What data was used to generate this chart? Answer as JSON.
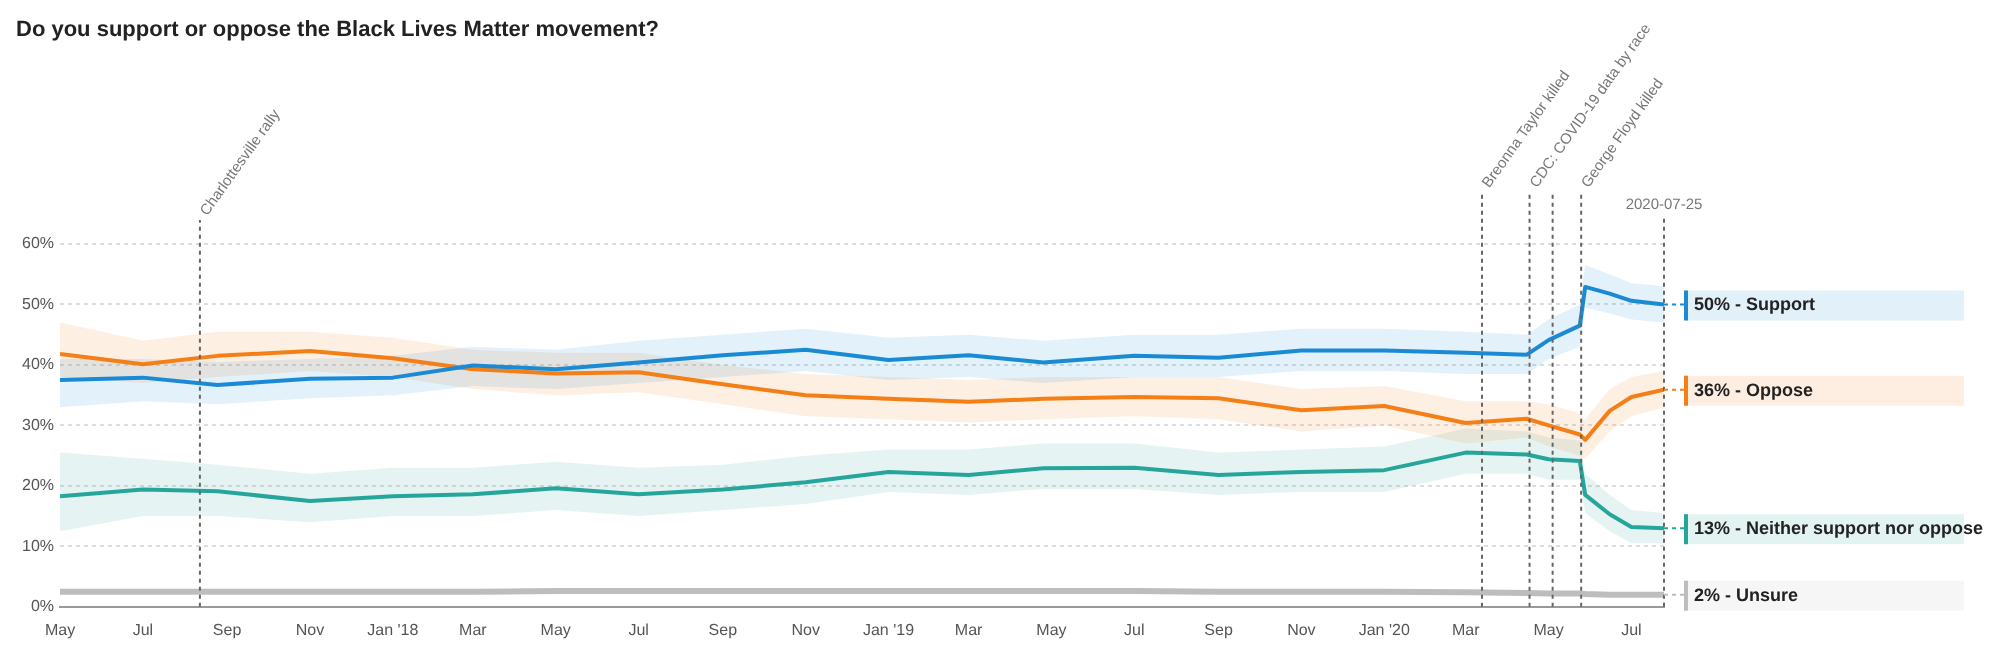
{
  "chart_data": {
    "type": "line",
    "title": "Do you support or oppose the Black Lives Matter movement?",
    "x": [
      "2017-05-01",
      "2017-07-01",
      "2017-08-25",
      "2017-11-01",
      "2018-01-01",
      "2018-03-01",
      "2018-05-01",
      "2018-07-01",
      "2018-09-01",
      "2018-11-01",
      "2019-01-01",
      "2019-03-01",
      "2019-04-25",
      "2019-07-01",
      "2019-09-01",
      "2019-11-01",
      "2020-01-01",
      "2020-03-01",
      "2020-04-15",
      "2020-05-01",
      "2020-05-24",
      "2020-05-28",
      "2020-06-15",
      "2020-07-01",
      "2020-07-25"
    ],
    "series": [
      {
        "name": "50% - Support",
        "color": "#1a8ad4",
        "values": [
          37.5,
          37.9,
          36.7,
          37.7,
          37.9,
          39.9,
          39.3,
          40.4,
          41.6,
          42.5,
          40.8,
          41.6,
          40.4,
          41.5,
          41.2,
          42.4,
          42.4,
          42,
          41.7,
          44.1,
          46.5,
          52.9,
          51.8,
          50.6,
          50
        ],
        "lower": [
          33,
          34,
          33.5,
          34.5,
          35,
          36.5,
          36,
          37,
          38,
          39,
          37.5,
          38,
          37,
          38,
          38,
          39,
          39,
          38.5,
          38.5,
          41,
          43,
          49.5,
          48.5,
          47.5,
          47
        ],
        "upper": [
          41,
          41,
          40.5,
          41,
          41.5,
          43,
          42.5,
          44,
          45,
          46,
          44.5,
          45,
          44,
          45,
          45,
          46,
          46,
          45.5,
          45,
          47.5,
          50,
          56.5,
          55,
          53.5,
          53
        ]
      },
      {
        "name": "36% - Oppose",
        "color": "#f57f17",
        "values": [
          41.8,
          40.1,
          41.5,
          42.3,
          41.1,
          39.3,
          38.6,
          38.8,
          36.8,
          35,
          34.4,
          33.9,
          34.4,
          34.7,
          34.5,
          32.5,
          33.2,
          30.4,
          31.1,
          30,
          28.5,
          27.6,
          32.4,
          34.7,
          35.9
        ],
        "lower": [
          38,
          37,
          38,
          39,
          38,
          36,
          35,
          35.5,
          33.5,
          31.5,
          31,
          30.5,
          31,
          31.5,
          31,
          29,
          30,
          27,
          28,
          26.5,
          25,
          24.5,
          29,
          31.5,
          33
        ],
        "upper": [
          47,
          44,
          45.5,
          45.5,
          44.5,
          42.5,
          42,
          42,
          40,
          38.5,
          38,
          37.5,
          38,
          38,
          38,
          36,
          36.5,
          34,
          34,
          33.5,
          32,
          31,
          36,
          38,
          39
        ]
      },
      {
        "name": "13% - Neither support nor oppose",
        "color": "#26a69a",
        "values": [
          18.3,
          19.4,
          19.1,
          17.5,
          18.3,
          18.6,
          19.6,
          18.6,
          19.4,
          20.6,
          22.3,
          21.8,
          22.9,
          23,
          21.8,
          22.3,
          22.6,
          25.5,
          25.2,
          24.4,
          24.1,
          18.5,
          15.3,
          13.2,
          13
        ],
        "lower": [
          12.5,
          15,
          15,
          14,
          15,
          15,
          16,
          15,
          16,
          17,
          19,
          18.5,
          19.5,
          19.5,
          18.5,
          19,
          19,
          22,
          22,
          21,
          21,
          15.5,
          12.5,
          10.5,
          10.5
        ],
        "upper": [
          25.5,
          24.5,
          23.5,
          22,
          23,
          23,
          24,
          23,
          23.5,
          25,
          26,
          26,
          27,
          27,
          25.5,
          26,
          26.5,
          29.5,
          29,
          28,
          27.5,
          22,
          18.5,
          16,
          15.5
        ]
      },
      {
        "name": "2% - Unsure",
        "color": "#bdbdbd",
        "values": [
          2.5,
          2.5,
          2.5,
          2.5,
          2.5,
          2.5,
          2.6,
          2.6,
          2.6,
          2.6,
          2.6,
          2.6,
          2.6,
          2.6,
          2.5,
          2.5,
          2.5,
          2.4,
          2.3,
          2.2,
          2.2,
          2.1,
          2,
          2,
          2
        ]
      }
    ],
    "xlim": [
      "2017-05-01",
      "2020-07-25"
    ],
    "xticks": [
      {
        "value": "2017-05-01",
        "label": "May"
      },
      {
        "value": "2017-07-01",
        "label": "Jul"
      },
      {
        "value": "2017-09-01",
        "label": "Sep"
      },
      {
        "value": "2017-11-01",
        "label": "Nov"
      },
      {
        "value": "2018-01-01",
        "label": "Jan '18"
      },
      {
        "value": "2018-03-01",
        "label": "Mar"
      },
      {
        "value": "2018-05-01",
        "label": "May"
      },
      {
        "value": "2018-07-01",
        "label": "Jul"
      },
      {
        "value": "2018-09-01",
        "label": "Sep"
      },
      {
        "value": "2018-11-01",
        "label": "Nov"
      },
      {
        "value": "2019-01-01",
        "label": "Jan '19"
      },
      {
        "value": "2019-03-01",
        "label": "Mar"
      },
      {
        "value": "2019-05-01",
        "label": "May"
      },
      {
        "value": "2019-07-01",
        "label": "Jul"
      },
      {
        "value": "2019-09-01",
        "label": "Sep"
      },
      {
        "value": "2019-11-01",
        "label": "Nov"
      },
      {
        "value": "2020-01-01",
        "label": "Jan '20"
      },
      {
        "value": "2020-03-01",
        "label": "Mar"
      },
      {
        "value": "2020-05-01",
        "label": "May"
      },
      {
        "value": "2020-07-01",
        "label": "Jul"
      }
    ],
    "ylim": [
      0,
      60
    ],
    "yticks": [
      {
        "value": 0,
        "label": "0%"
      },
      {
        "value": 10,
        "label": "10%"
      },
      {
        "value": 20,
        "label": "20%"
      },
      {
        "value": 30,
        "label": "30%"
      },
      {
        "value": 40,
        "label": "40%"
      },
      {
        "value": 50,
        "label": "50%"
      },
      {
        "value": 60,
        "label": "60%"
      }
    ],
    "ref_lines": [
      {
        "axis": "x",
        "value": "2017-08-12",
        "label": "Charlottesville rally",
        "line_style": "dotted"
      },
      {
        "axis": "x",
        "value": "2020-03-13",
        "label": "Breonna Taylor killed",
        "line_style": "dotted"
      },
      {
        "axis": "x",
        "value": "2020-04-17",
        "label": "CDC: COVID-19 data by race",
        "line_style": "dotted"
      },
      {
        "axis": "x",
        "value": "2020-05-04",
        "label": null,
        "line_style": "dotted"
      },
      {
        "axis": "x",
        "value": "2020-05-25",
        "label": "George Floyd killed",
        "line_style": "dotted"
      },
      {
        "axis": "x",
        "value": "2020-07-25",
        "label": "2020-07-25",
        "line_style": "dotted"
      }
    ],
    "grid": "y",
    "legend": "right",
    "marker": "none",
    "line_style": "solid"
  }
}
